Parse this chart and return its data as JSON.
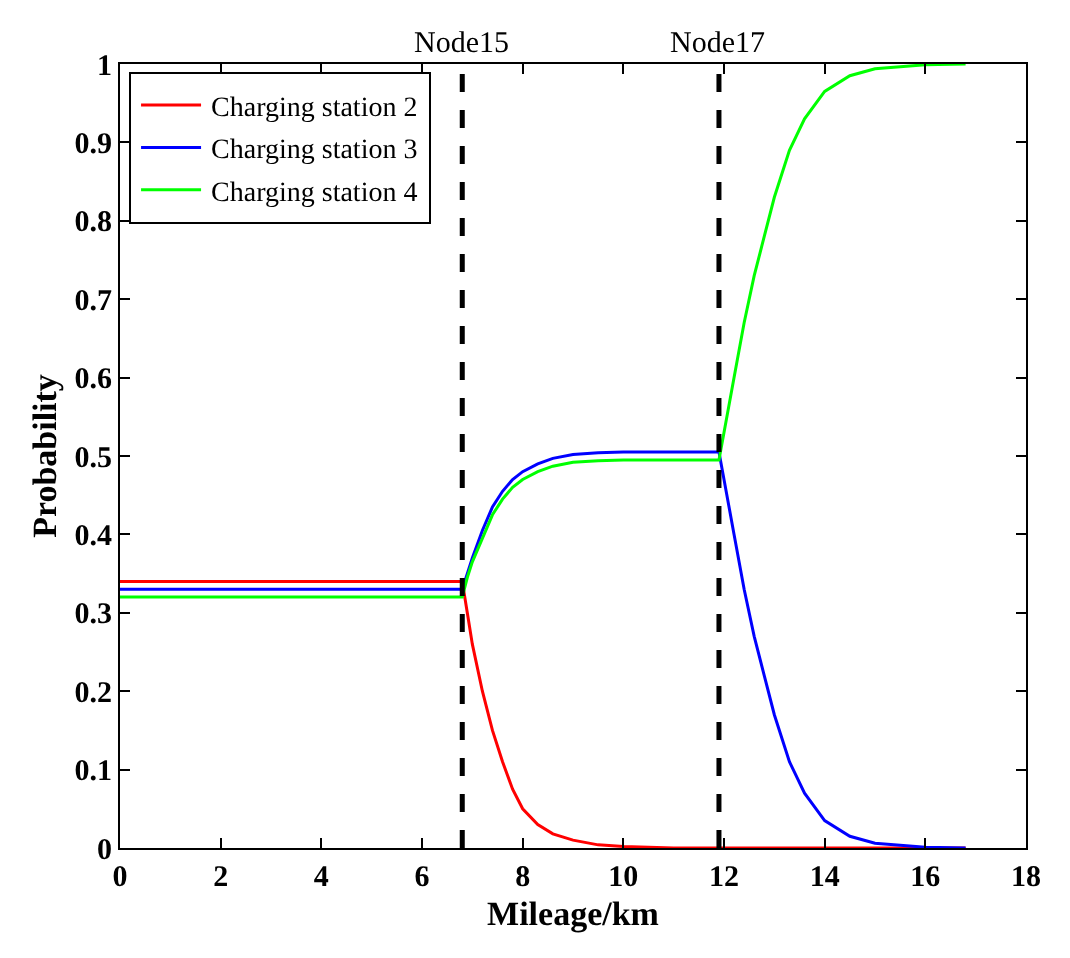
{
  "chart_data": {
    "type": "line",
    "xlabel": "Mileage/km",
    "ylabel": "Probability",
    "x": [
      0,
      6.8,
      6.9,
      7.0,
      7.2,
      7.4,
      7.6,
      7.8,
      8.0,
      8.3,
      8.6,
      9,
      9.5,
      10,
      11,
      11.9,
      12.0,
      12.2,
      12.4,
      12.6,
      12.8,
      13.0,
      13.3,
      13.6,
      14,
      14.5,
      15,
      16,
      16.8
    ],
    "series": [
      {
        "name": "Charging station 2",
        "color": "#ff0000",
        "values": [
          0.34,
          0.34,
          0.3,
          0.26,
          0.2,
          0.15,
          0.11,
          0.075,
          0.05,
          0.03,
          0.018,
          0.01,
          0.004,
          0.002,
          0,
          0,
          0,
          0,
          0,
          0,
          0,
          0,
          0,
          0,
          0,
          0,
          0,
          0,
          0
        ]
      },
      {
        "name": "Charging station 3",
        "color": "#0000ff",
        "values": [
          0.33,
          0.33,
          0.35,
          0.37,
          0.405,
          0.435,
          0.455,
          0.47,
          0.48,
          0.49,
          0.497,
          0.502,
          0.504,
          0.505,
          0.505,
          0.505,
          0.47,
          0.4,
          0.33,
          0.27,
          0.22,
          0.17,
          0.11,
          0.07,
          0.035,
          0.015,
          0.006,
          0.001,
          0
        ]
      },
      {
        "name": "Charging station 4",
        "color": "#00ff00",
        "values": [
          0.32,
          0.32,
          0.345,
          0.365,
          0.395,
          0.425,
          0.445,
          0.46,
          0.47,
          0.48,
          0.487,
          0.492,
          0.494,
          0.495,
          0.495,
          0.495,
          0.53,
          0.6,
          0.67,
          0.73,
          0.78,
          0.83,
          0.89,
          0.93,
          0.965,
          0.985,
          0.994,
          0.999,
          1
        ]
      }
    ],
    "xlim": [
      0,
      18
    ],
    "xticks": [
      0,
      2,
      4,
      6,
      8,
      10,
      12,
      14,
      16,
      18
    ],
    "ylim": [
      0,
      1
    ],
    "yticks": [
      0,
      0.1,
      0.2,
      0.3,
      0.4,
      0.5,
      0.6,
      0.7,
      0.8,
      0.9,
      1
    ],
    "ref_lines": [
      {
        "axis": "x",
        "value": 6.8,
        "label": "Node15",
        "color": "#000000",
        "line_style": "dashed"
      },
      {
        "axis": "x",
        "value": 11.9,
        "label": "Node17",
        "color": "#000000",
        "line_style": "dashed"
      }
    ],
    "grid": false,
    "legend": "top left",
    "marker": "none",
    "line_style": "solid"
  }
}
